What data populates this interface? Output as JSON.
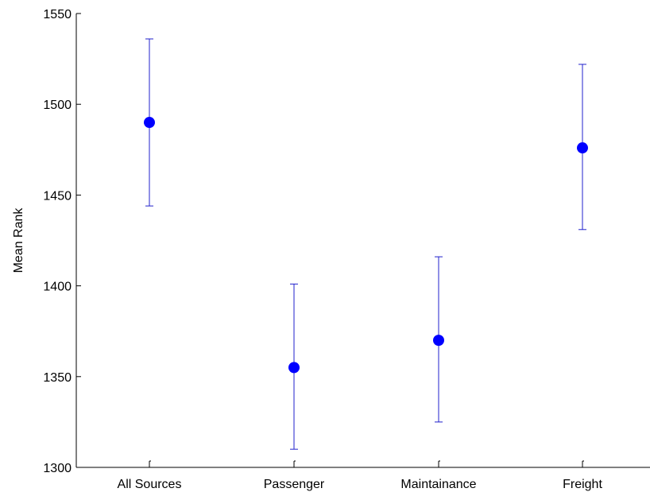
{
  "chart_data": {
    "type": "scatter",
    "title": "",
    "xlabel": "",
    "ylabel": "Mean Rank",
    "categories": [
      "All Sources",
      "Passenger",
      "Maintainance",
      "Freight"
    ],
    "series": [
      {
        "mean": [
          1490,
          1355,
          1370,
          1476
        ],
        "lower": [
          1444,
          1310,
          1325,
          1431
        ],
        "upper": [
          1536,
          1401,
          1416,
          1522
        ]
      }
    ],
    "ylim": [
      1300,
      1550
    ],
    "yticks": [
      1300,
      1350,
      1400,
      1450,
      1500,
      1550
    ],
    "grid": false,
    "colors": {
      "marker": "#0000ff",
      "errorbar": "#2222cc",
      "axis": "#000000"
    }
  }
}
